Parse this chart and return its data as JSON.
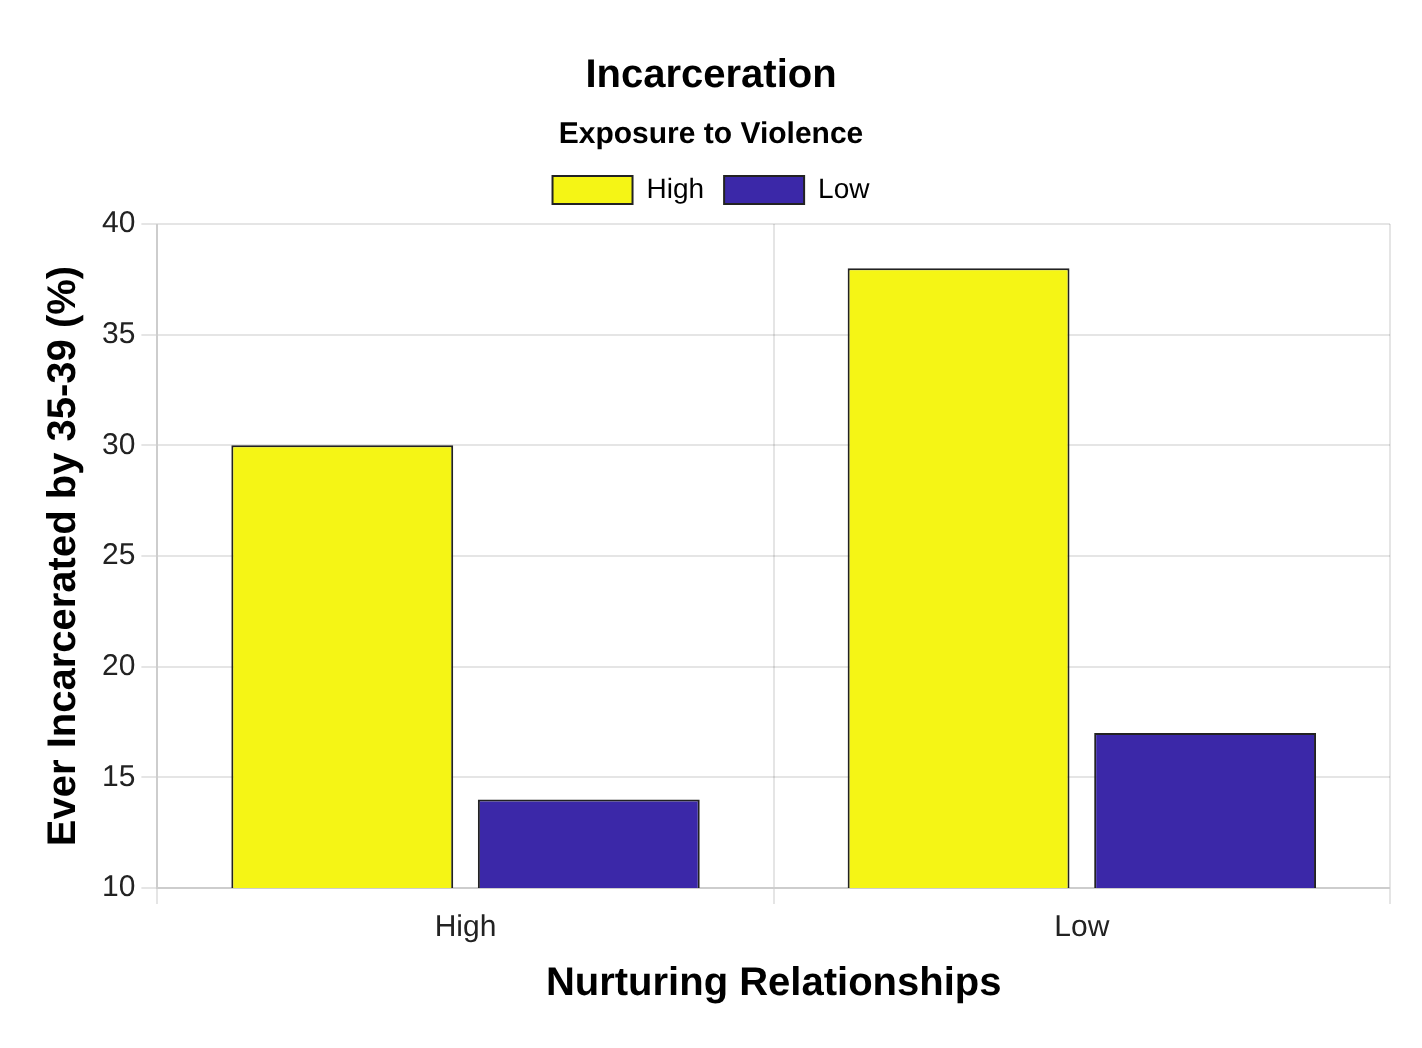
{
  "chart_data": {
    "type": "bar",
    "title": "Incarceration",
    "xlabel": "Nurturing Relationships",
    "ylabel": "Ever Incarcerated by 35-39 (%)",
    "legend_title": "Exposure to Violence",
    "categories": [
      "High",
      "Low"
    ],
    "series": [
      {
        "name": "High",
        "color": "#f5f515",
        "values": [
          30,
          38
        ]
      },
      {
        "name": "Low",
        "color": "#3b28a8",
        "values": [
          14,
          17
        ]
      }
    ],
    "ylim": [
      10,
      40
    ],
    "yticks": [
      10,
      15,
      20,
      25,
      30,
      35,
      40
    ],
    "grid": true,
    "legend": "top"
  }
}
